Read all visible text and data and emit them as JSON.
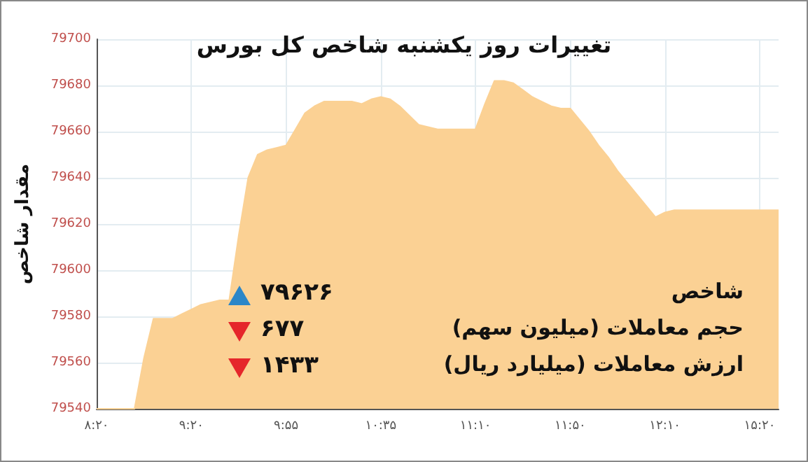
{
  "chart_data": {
    "type": "area",
    "title": "تغییرات روز یکشنبه شاخص کل بورس",
    "ylabel": "مقدار شاخص",
    "categories": [
      "۸:۲۰",
      null,
      null,
      null,
      null,
      null,
      null,
      null,
      null,
      null,
      "۹:۲۰",
      null,
      null,
      null,
      null,
      null,
      null,
      null,
      null,
      null,
      "۹:۵۵",
      null,
      null,
      null,
      null,
      null,
      null,
      null,
      null,
      null,
      "۱۰:۳۵",
      null,
      null,
      null,
      null,
      null,
      null,
      null,
      null,
      null,
      "۱۱:۱۰",
      null,
      null,
      null,
      null,
      null,
      null,
      null,
      null,
      null,
      "۱۱:۵۰",
      null,
      null,
      null,
      null,
      null,
      null,
      null,
      null,
      null,
      "۱۲:۱۰",
      null,
      null,
      null,
      null,
      null,
      null,
      null,
      null,
      null,
      "۱۵:۲۰",
      null,
      null
    ],
    "series": [
      {
        "color": "#fbd194",
        "values": [
          79540,
          79540,
          79540,
          79540,
          79540,
          79562,
          79579,
          79579,
          79579,
          79581,
          79583,
          79585,
          79586,
          79587,
          79587,
          79615,
          79640,
          79650,
          79652,
          79653,
          79654,
          79661,
          79668,
          79671,
          79673,
          79673,
          79673,
          79673,
          79672,
          79674,
          79675,
          79674,
          79671,
          79667,
          79663,
          79662,
          79661,
          79661,
          79661,
          79661,
          79661,
          79672,
          79682,
          79682,
          79681,
          79678,
          79675,
          79673,
          79671,
          79670,
          79670,
          79665,
          79660,
          79654,
          79649,
          79643,
          79638,
          79633,
          79628,
          79623,
          79625,
          79626,
          79626,
          79626,
          79626,
          79626,
          79626,
          79626,
          79626,
          79626,
          79626,
          79626,
          79626
        ]
      }
    ],
    "ylim": [
      79540,
      79700
    ],
    "yticks": [
      79540,
      79560,
      79580,
      79600,
      79620,
      79640,
      79660,
      79680,
      79700
    ],
    "grid": true,
    "marker": "none",
    "annotations": [
      "شاخص",
      "۷۹۶۲۶",
      "حجم معاملات (میلیون سهم)",
      "۶۷۷",
      "ارزش معاملات (میلیارد ریال)",
      "۱۴۳۳"
    ]
  }
}
